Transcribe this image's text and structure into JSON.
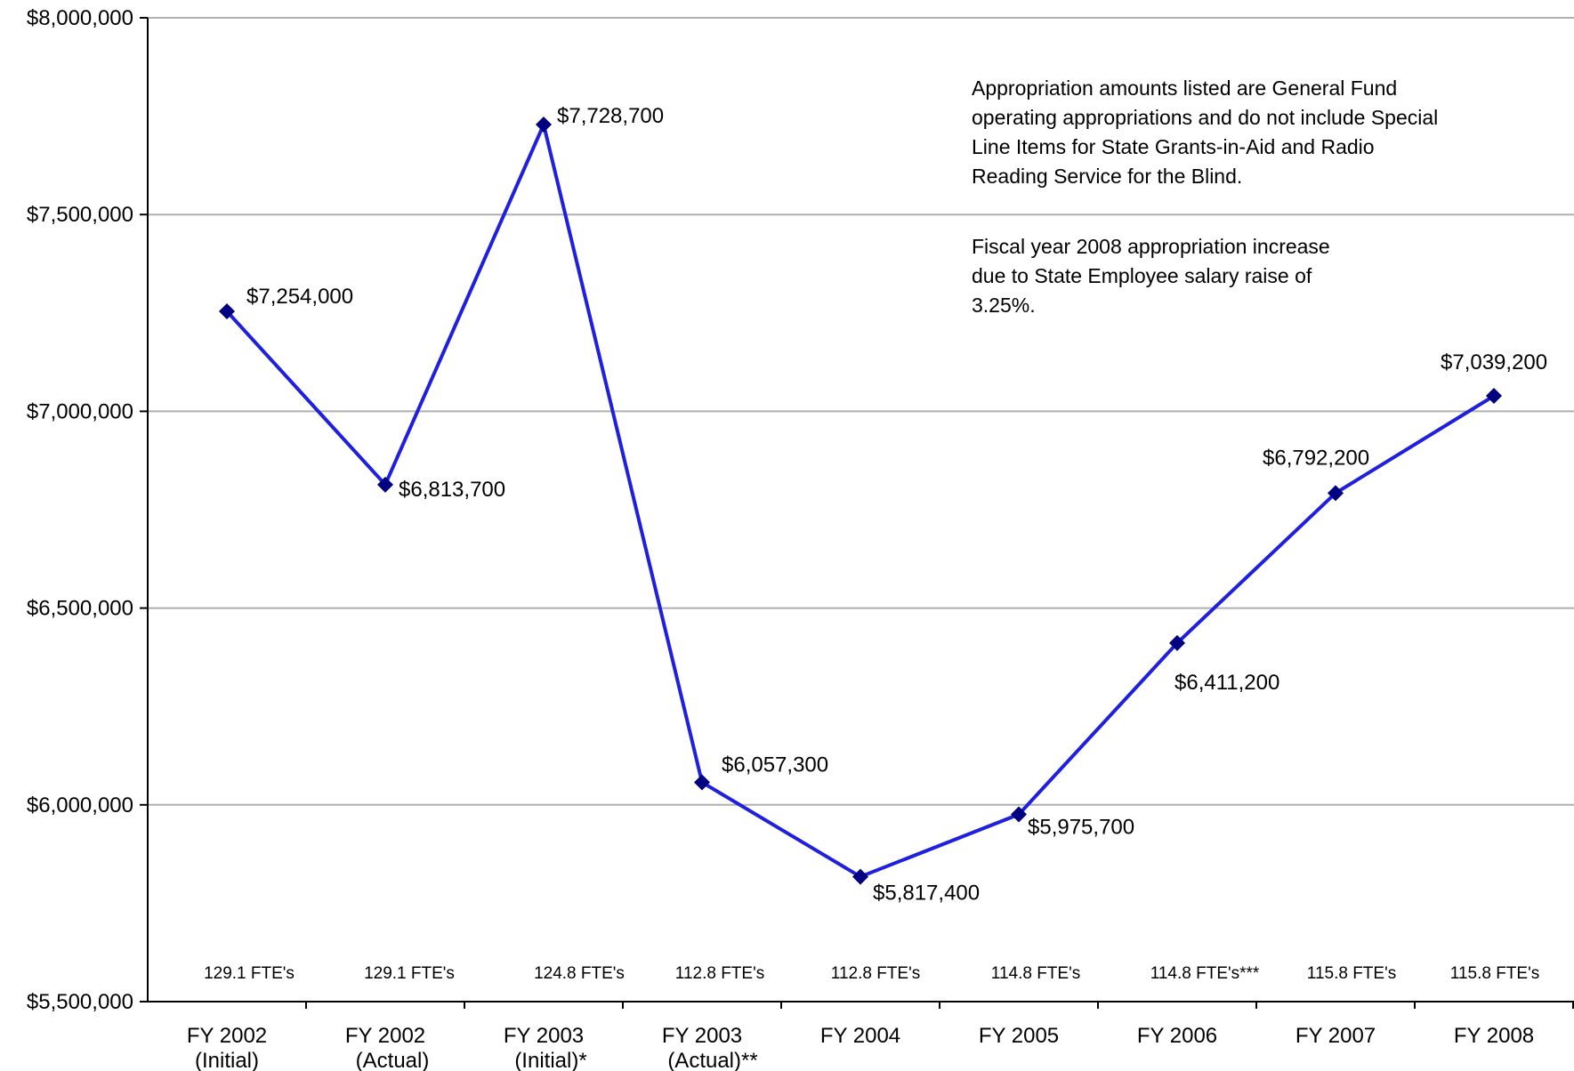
{
  "chart_data": {
    "type": "line",
    "categories": [
      [
        "FY 2002",
        "(Initial)"
      ],
      [
        "FY 2002",
        "(Actual)"
      ],
      [
        "FY 2003",
        "(Initial)*"
      ],
      [
        "FY 2003",
        "(Actual)**"
      ],
      [
        "FY 2004"
      ],
      [
        "FY 2005"
      ],
      [
        "FY 2006"
      ],
      [
        "FY 2007"
      ],
      [
        "FY 2008"
      ]
    ],
    "values": [
      7254000,
      6813700,
      7728700,
      6057300,
      5817400,
      5975700,
      6411200,
      6792200,
      7039200
    ],
    "data_labels": [
      "$7,254,000",
      "$6,813,700",
      "$7,728,700",
      "$6,057,300",
      "$5,817,400",
      "$5,975,700",
      "$6,411,200",
      "$6,792,200",
      "$7,039,200"
    ],
    "fte_labels": [
      "129.1 FTE's",
      "129.1 FTE's",
      "124.8 FTE's",
      "112.8 FTE's",
      "112.8 FTE's",
      "114.8 FTE's",
      "114.8  FTE's***",
      "115.8 FTE's",
      "115.8 FTE's"
    ],
    "ylim": [
      5500000,
      8000000
    ],
    "yticks": [
      5500000,
      6000000,
      6500000,
      7000000,
      7500000,
      8000000
    ],
    "ytick_labels": [
      "$5,500,000",
      "$6,000,000",
      "$6,500,000",
      "$7,000,000",
      "$7,500,000",
      "$8,000,000"
    ],
    "grid": "horizontal",
    "series_color": "#1f1fe0",
    "marker_color": "#000080",
    "notes": [
      [
        "Appropriation amounts listed are General Fund",
        "operating appropriations and do not include Special",
        "Line Items for State Grants-in-Aid and Radio",
        "Reading Service for the Blind."
      ],
      [
        "Fiscal year 2008 appropriation increase",
        "due to State Employee salary raise of",
        "3.25%."
      ]
    ]
  }
}
